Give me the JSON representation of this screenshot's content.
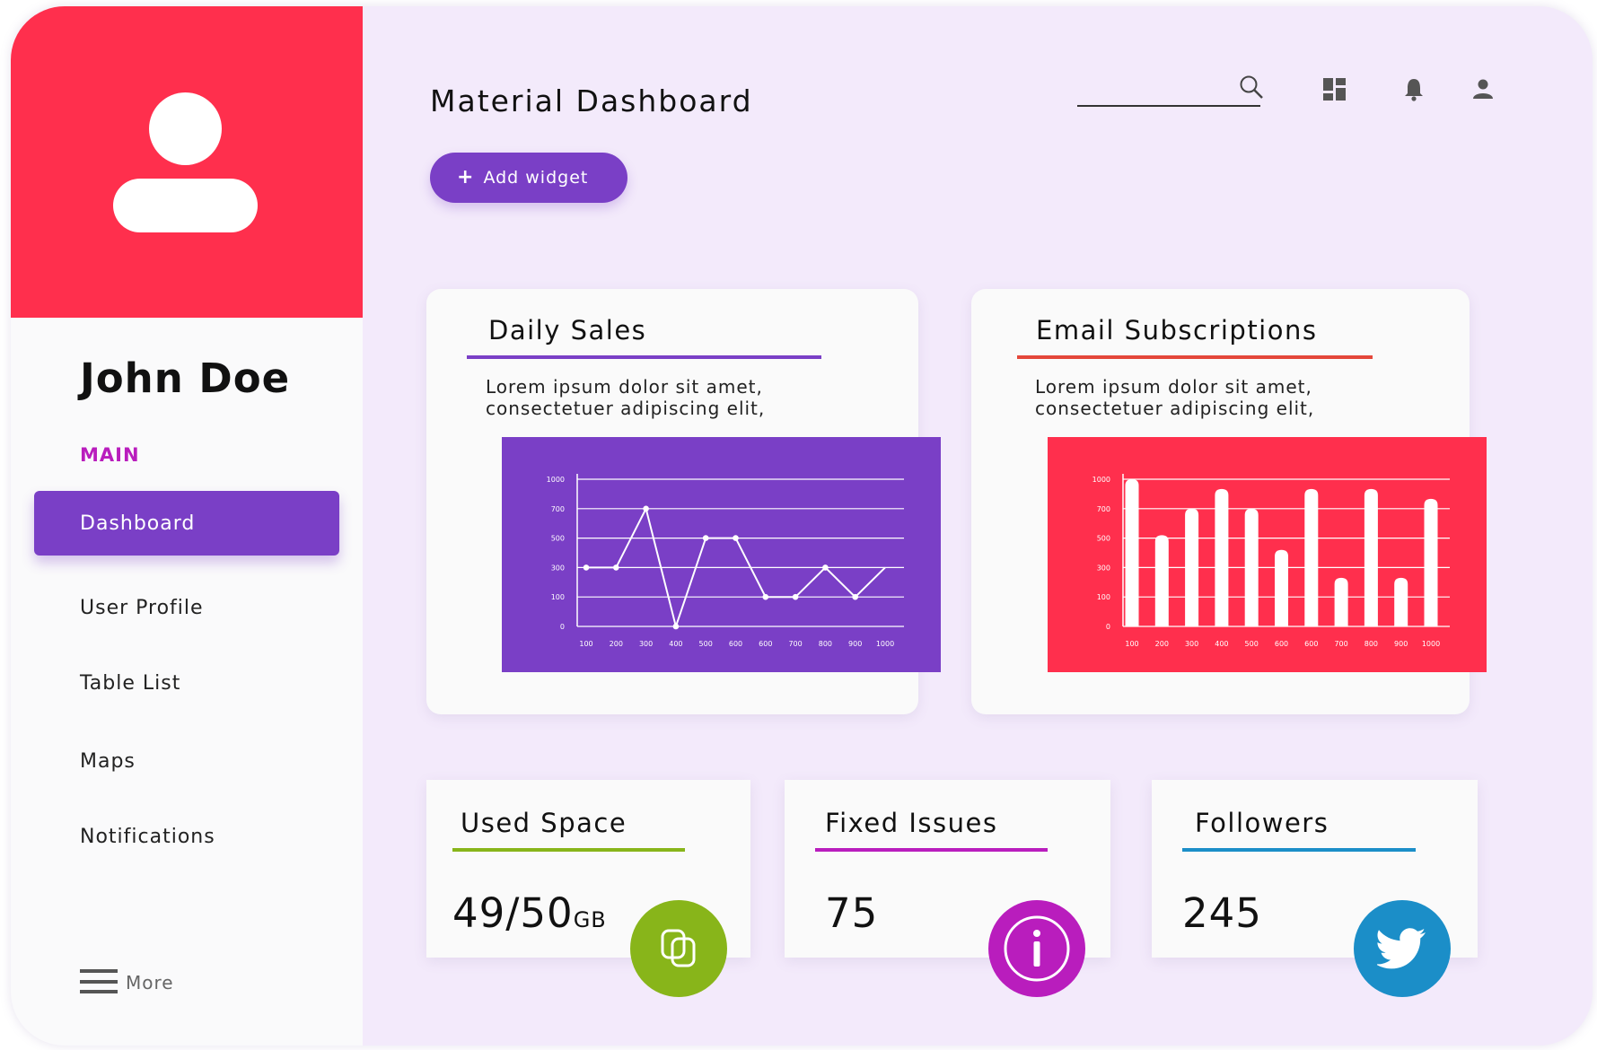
{
  "app": {
    "title": "Material Dashboard"
  },
  "user": {
    "name": "John Doe"
  },
  "sidebar": {
    "section_label": "MAIN",
    "items": [
      {
        "label": "Dashboard",
        "active": true
      },
      {
        "label": "User Profile"
      },
      {
        "label": "Table List"
      },
      {
        "label": "Maps"
      },
      {
        "label": "Notifications"
      }
    ],
    "more_label": "More"
  },
  "toolbar": {
    "add_widget_label": "Add widget",
    "icons": [
      "search-icon",
      "dashboard-grid-icon",
      "bell-icon",
      "person-icon"
    ]
  },
  "colors": {
    "accent": "#7a3fc6",
    "brand_red": "#ff2f4d",
    "magenta": "#b91dbd",
    "green": "#88b51a",
    "blue": "#1b8ec8"
  },
  "cards": {
    "daily_sales": {
      "title": "Daily Sales",
      "description_line1": "Lorem ipsum dolor sit amet,",
      "description_line2": "consectetuer adipiscing elit,"
    },
    "email_subscriptions": {
      "title": "Email Subscriptions",
      "description_line1": "Lorem ipsum dolor sit amet,",
      "description_line2": "consectetuer adipiscing elit,"
    },
    "used_space": {
      "title": "Used Space",
      "value": "49/50",
      "unit": "GB"
    },
    "fixed_issues": {
      "title": "Fixed Issues",
      "value": "75"
    },
    "followers": {
      "title": "Followers",
      "value": "245"
    }
  },
  "chart_data": [
    {
      "type": "line",
      "title": "",
      "xlabel": "",
      "ylabel": "",
      "y_ticks": [
        "1000",
        "700",
        "500",
        "300",
        "100",
        "0"
      ],
      "x_ticks": [
        "100",
        "200",
        "300",
        "400",
        "500",
        "600",
        "600",
        "700",
        "800",
        "900",
        "1000"
      ],
      "grid": true,
      "background": "#7a3fc6",
      "values": [
        300,
        300,
        700,
        0,
        500,
        500,
        100,
        100,
        300,
        100,
        300
      ]
    },
    {
      "type": "bar",
      "title": "",
      "xlabel": "",
      "ylabel": "",
      "y_ticks": [
        "1000",
        "700",
        "500",
        "300",
        "100",
        "0"
      ],
      "x_ticks": [
        "100",
        "200",
        "300",
        "400",
        "500",
        "600",
        "600",
        "700",
        "800",
        "900",
        "1000"
      ],
      "grid": true,
      "background": "#ff2f4d",
      "values": [
        1000,
        520,
        700,
        900,
        700,
        420,
        900,
        230,
        900,
        230,
        800
      ]
    }
  ]
}
